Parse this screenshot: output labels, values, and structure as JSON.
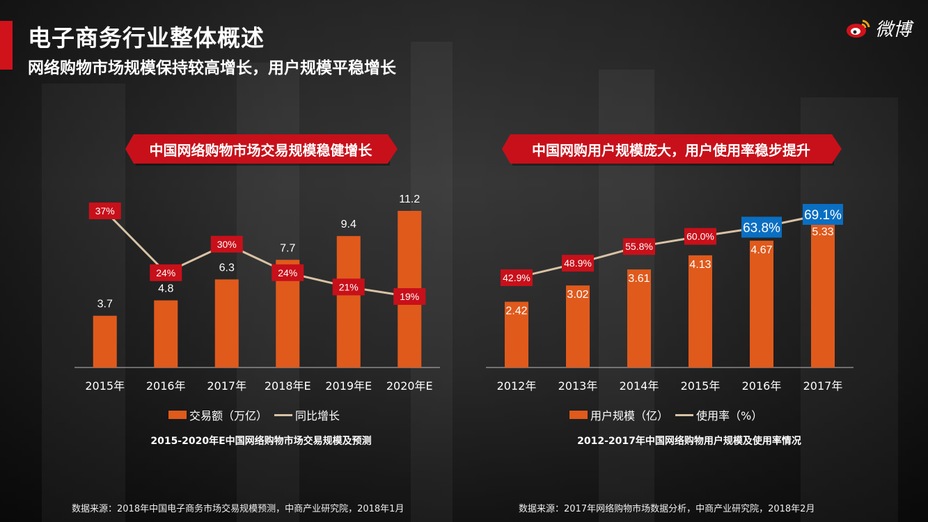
{
  "header": {
    "title": "电子商务行业整体概述",
    "subtitle": "网络购物市场规模保持较高增长，用户规模平稳增长",
    "logo_text": "微博"
  },
  "colors": {
    "accent_red": "#c8101a",
    "bar_orange": "#e05a1c",
    "line_tan": "#d8c3a5",
    "highlight_blue": "#0a6fc2"
  },
  "left": {
    "banner": "中国网络购物市场交易规模稳健增长",
    "legend": {
      "bar": "交易额（万亿）",
      "line": "同比增长"
    },
    "caption": "2015-2020年E中国网络购物市场交易规模及预测",
    "source": "数据来源：2018年中国电子商务市场交易规模预测，中商产业研究院，2018年1月"
  },
  "right": {
    "banner": "中国网购用户规模庞大，用户使用率稳步提升",
    "legend": {
      "bar": "用户规模（亿）",
      "line": "使用率（%）"
    },
    "caption": "2012-2017年中国网络购物用户规模及使用率情况",
    "source": "数据来源：2017年网络购物市场数据分析，中商产业研究院，2018年2月"
  },
  "chart_data": [
    {
      "type": "bar",
      "categories": [
        "2015年",
        "2016年",
        "2017年",
        "2018年E",
        "2019年E",
        "2020年E"
      ],
      "series": [
        {
          "name": "交易额（万亿）",
          "type": "bar",
          "values": [
            3.7,
            4.8,
            6.3,
            7.7,
            9.4,
            11.2
          ],
          "labels": [
            "3.7",
            "4.8",
            "6.3",
            "7.7",
            "9.4",
            "11.2"
          ]
        },
        {
          "name": "同比增长",
          "type": "line",
          "values": [
            37,
            24,
            30,
            24,
            21,
            19
          ],
          "labels": [
            "37%",
            "24%",
            "30%",
            "24%",
            "21%",
            "19%"
          ]
        }
      ],
      "legend": "bottom"
    },
    {
      "type": "bar",
      "categories": [
        "2012年",
        "2013年",
        "2014年",
        "2015年",
        "2016年",
        "2017年"
      ],
      "series": [
        {
          "name": "用户规模（亿）",
          "type": "bar",
          "values": [
            2.42,
            3.02,
            3.61,
            4.13,
            4.67,
            5.33
          ],
          "labels": [
            "2.42",
            "3.02",
            "3.61",
            "4.13",
            "4.67",
            "5.33"
          ]
        },
        {
          "name": "使用率（%）",
          "type": "line",
          "values": [
            42.9,
            48.9,
            55.8,
            60.0,
            63.8,
            69.1
          ],
          "labels": [
            "42.9%",
            "48.9%",
            "55.8%",
            "60.0%",
            "63.8%",
            "69.1%"
          ],
          "highlighted": [
            "63.8%",
            "69.1%"
          ]
        }
      ],
      "legend": "bottom"
    }
  ]
}
